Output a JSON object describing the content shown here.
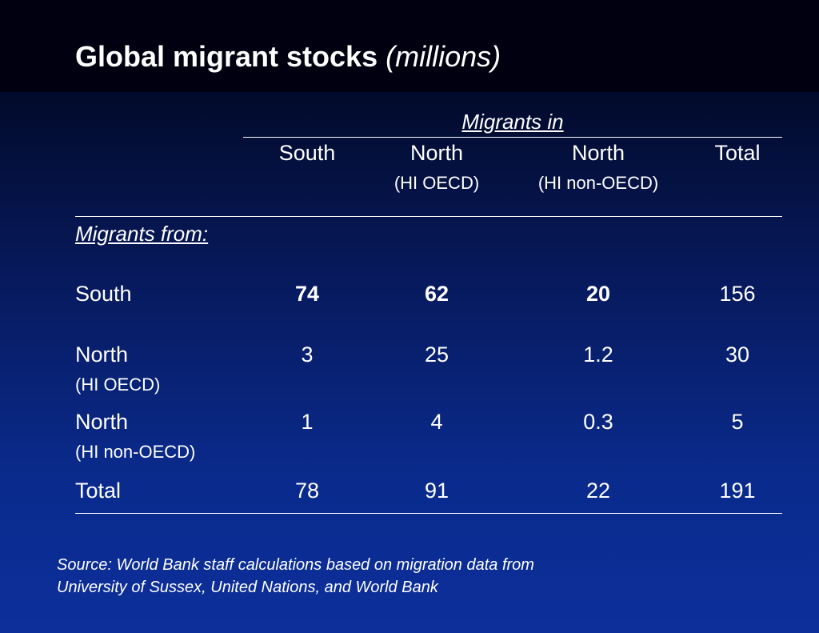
{
  "title": {
    "main": "Global migrant stocks",
    "sub": "(millions)"
  },
  "table": {
    "header_group": "Migrants in",
    "columns": [
      {
        "label": "South",
        "sub": ""
      },
      {
        "label": "North",
        "sub": "(HI OECD)"
      },
      {
        "label": "North",
        "sub": "(HI non-OECD)"
      },
      {
        "label": "Total",
        "sub": ""
      }
    ],
    "row_group": "Migrants from:",
    "rows": [
      {
        "label": "South",
        "sub": "",
        "values": [
          "74",
          "62",
          "20",
          "156"
        ],
        "bold": [
          true,
          true,
          true,
          false
        ]
      },
      {
        "label": "North",
        "sub": "(HI OECD)",
        "values": [
          "3",
          "25",
          "1.2",
          "30"
        ],
        "bold": [
          false,
          false,
          false,
          false
        ]
      },
      {
        "label": "North",
        "sub": "(HI non-OECD)",
        "values": [
          "1",
          "4",
          "0.3",
          "5"
        ],
        "bold": [
          false,
          false,
          false,
          false
        ]
      },
      {
        "label": "Total",
        "sub": "",
        "values": [
          "78",
          "91",
          "22",
          "191"
        ],
        "bold": [
          false,
          false,
          false,
          false
        ]
      }
    ]
  },
  "source": {
    "line1": "Source: World Bank staff calculations based on migration data from",
    "line2": "University of Sussex, United Nations, and World Bank"
  },
  "colors": {
    "text": "#ffffff",
    "background_top": "#000010",
    "background_bottom": "#0c2f9a"
  }
}
